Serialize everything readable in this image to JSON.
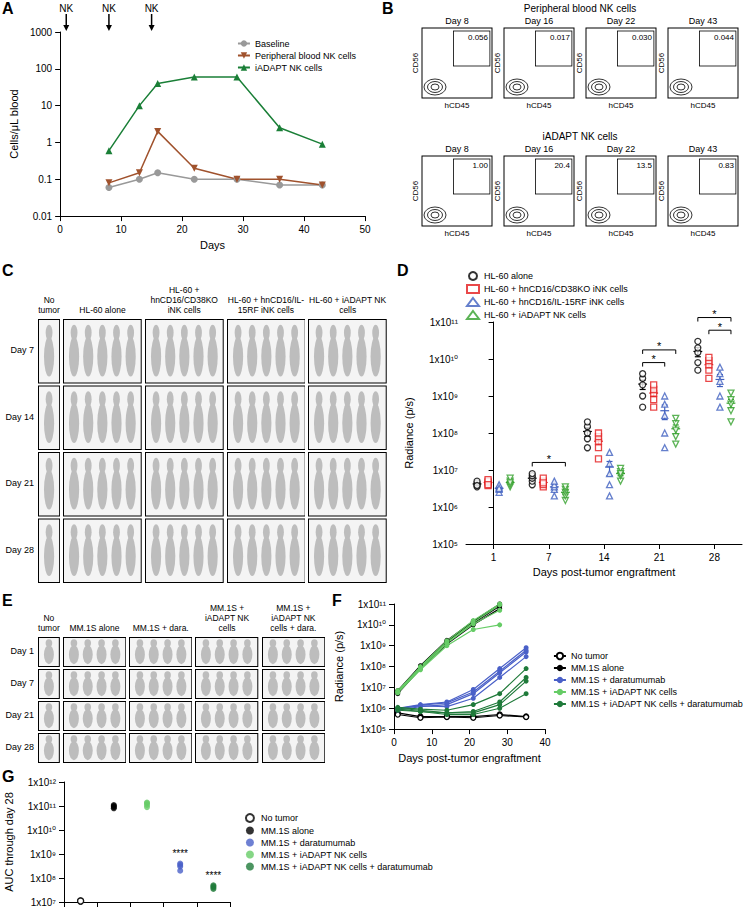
{
  "chart_data": [
    {
      "title": "A",
      "type": "line",
      "xlabel": "Days",
      "ylabel": "Cells/μL blood",
      "log": "y",
      "grid": false,
      "legend": "upper right",
      "xlim": [
        0,
        50
      ],
      "xticks": [
        0,
        10,
        20,
        30,
        40,
        50
      ],
      "ylim": [
        0.01,
        1000
      ],
      "yticks": [
        0.01,
        0.1,
        1,
        10,
        100,
        1000
      ],
      "annotations": [
        {
          "x": 1,
          "label": "NK"
        },
        {
          "x": 8,
          "label": "NK"
        },
        {
          "x": 15,
          "label": "NK"
        }
      ],
      "series": [
        {
          "name": "Baseline",
          "color": "#999999",
          "marker": "circle",
          "x": [
            8,
            13,
            16,
            22,
            29,
            36,
            43
          ],
          "values": [
            0.06,
            0.1,
            0.15,
            0.1,
            0.1,
            0.07,
            0.07
          ]
        },
        {
          "name": "Peripheral blood NK cells",
          "color": "#a0522d",
          "marker": "triangle_down",
          "x": [
            8,
            13,
            16,
            22,
            29,
            36,
            43
          ],
          "values": [
            0.08,
            0.15,
            2,
            0.2,
            0.1,
            0.1,
            0.07
          ]
        },
        {
          "name": "iADAPT NK cells",
          "color": "#1a7f37",
          "marker": "triangle",
          "x": [
            8,
            13,
            16,
            22,
            29,
            36,
            43
          ],
          "values": [
            0.6,
            10,
            40,
            60,
            60,
            2.5,
            0.9
          ]
        }
      ]
    },
    {
      "title": "D",
      "type": "scatter",
      "xlabel": "Days post-tumor engraftment",
      "ylabel": "Radiance (p/s)",
      "log": "y",
      "grid": false,
      "legend": "upper left",
      "categories": [
        "1",
        "7",
        "14",
        "21",
        "28"
      ],
      "ylim": [
        100000,
        100000000000
      ],
      "yticks": [
        {
          "value": 100000,
          "label": "1x10⁵"
        },
        {
          "value": 1000000,
          "label": "1x10⁶"
        },
        {
          "value": 10000000,
          "label": "1x10⁷"
        },
        {
          "value": 100000000,
          "label": "1x10⁸"
        },
        {
          "value": 1000000000,
          "label": "1x10⁹"
        },
        {
          "value": 10000000000,
          "label": "1x10¹⁰"
        },
        {
          "value": 100000000000,
          "label": "1x10¹¹"
        }
      ],
      "annotations": [
        {
          "category": "7",
          "from": "HL-60 alone",
          "to": "HL-60 + iADAPT NK cells",
          "label": "*"
        },
        {
          "category": "21",
          "from": "HL-60 alone",
          "to": "HL-60 + hnCD16/IL-15RF iNK cells",
          "label": "*"
        },
        {
          "category": "21",
          "from": "HL-60 alone",
          "to": "HL-60 + iADAPT NK cells",
          "label": "*"
        },
        {
          "category": "28",
          "from": "HL-60 + hnCD16/CD38KO iNK cells",
          "to": "HL-60 + iADAPT NK cells",
          "label": "*"
        },
        {
          "category": "28",
          "from": "HL-60 alone",
          "to": "HL-60 + iADAPT NK cells",
          "label": "*"
        }
      ],
      "series": [
        {
          "name": "HL-60 alone",
          "color": "#000000",
          "marker": "open_circle",
          "values": [
            [
              3500000.0,
              4000000.0,
              4500000.0,
              5000000.0,
              3800000.0
            ],
            [
              4000000.0,
              5000000.0,
              6000000.0,
              7000000.0,
              8000000.0
            ],
            [
              40000000.0,
              70000000.0,
              100000000.0,
              150000000.0,
              200000000.0
            ],
            [
              500000000.0,
              1000000000.0,
              2000000000.0,
              3000000000.0,
              4000000000.0
            ],
            [
              5000000000.0,
              8000000000.0,
              15000000000.0,
              20000000000.0,
              30000000000.0
            ]
          ],
          "mean": [
            4200000.0,
            6000000.0,
            110000000.0,
            2100000000.0,
            16000000000.0
          ],
          "sem": [
            250000.0,
            700000.0,
            30000000.0,
            600000000.0,
            4500000000.0
          ]
        },
        {
          "name": "HL-60 + hnCD16/CD38KO iNK cells",
          "color": "#e41a1c",
          "marker": "open_square",
          "values": [
            [
              3800000.0,
              4500000.0,
              5000000.0,
              5500000.0,
              4000000.0
            ],
            [
              3500000.0,
              4000000.0,
              5000000.0,
              6000000.0,
              4500000.0
            ],
            [
              20000000.0,
              40000000.0,
              60000000.0,
              80000000.0,
              100000000.0
            ],
            [
              500000000.0,
              800000000.0,
              1200000000.0,
              1500000000.0,
              2000000000.0
            ],
            [
              3000000000.0,
              5000000000.0,
              7000000000.0,
              9000000000.0,
              11000000000.0
            ]
          ],
          "mean": [
            4600000.0,
            4600000.0,
            60000000.0,
            1200000000.0,
            7000000000.0
          ],
          "sem": [
            300000.0,
            400000.0,
            14000000.0,
            260000000.0,
            1400000000.0
          ]
        },
        {
          "name": "HL-60 + hnCD16/IL-15RF iNK cells",
          "color": "#3f5fbf",
          "marker": "open_triangle",
          "values": [
            [
              2500000.0,
              3000000.0,
              3500000.0,
              4000000.0,
              3200000.0
            ],
            [
              2000000.0,
              3000000.0,
              3500000.0,
              4000000.0,
              5000000.0
            ],
            [
              2000000.0,
              4000000.0,
              8000000.0,
              15000000.0,
              30000000.0
            ],
            [
              40000000.0,
              100000000.0,
              300000000.0,
              600000000.0,
              1000000000.0
            ],
            [
              500000000.0,
              1000000000.0,
              2500000000.0,
              4000000000.0,
              6000000000.0
            ]
          ],
          "mean": [
            3200000.0,
            3500000.0,
            12000000.0,
            400000000.0,
            2800000000.0
          ],
          "sem": [
            250000.0,
            500000.0,
            5000000.0,
            170000000.0,
            1000000000.0
          ]
        },
        {
          "name": "HL-60 + iADAPT NK cells",
          "color": "#33a02c",
          "marker": "open_triangle_down",
          "values": [
            [
              3500000.0,
              4000000.0,
              5000000.0,
              6000000.0,
              4500000.0
            ],
            [
              1500000.0,
              2000000.0,
              2500000.0,
              3000000.0,
              3500000.0
            ],
            [
              5000000.0,
              7000000.0,
              9000000.0,
              11000000.0,
              8000000.0
            ],
            [
              50000000.0,
              80000000.0,
              120000000.0,
              180000000.0,
              250000000.0
            ],
            [
              200000000.0,
              400000000.0,
              600000000.0,
              800000000.0,
              1200000000.0
            ]
          ],
          "mean": [
            4600000.0,
            2500000.0,
            8000000.0,
            130000000.0,
            640000000.0
          ],
          "sem": [
            400000.0,
            350000.0,
            1000000.0,
            35000000.0,
            170000000.0
          ]
        }
      ]
    },
    {
      "title": "F",
      "type": "line",
      "xlabel": "Days post-tumor engraftment",
      "ylabel": "Radiance (p/s)",
      "log": "y",
      "grid": false,
      "legend": "right",
      "x": [
        1,
        7,
        14,
        21,
        28,
        35
      ],
      "xlim": [
        0,
        40
      ],
      "xticks": [
        0,
        10,
        20,
        30,
        40
      ],
      "ylim": [
        100000,
        100000000000
      ],
      "yticks": [
        {
          "value": 100000,
          "label": "1x10⁵"
        },
        {
          "value": 1000000,
          "label": "1x10⁶"
        },
        {
          "value": 10000000,
          "label": "1x10⁷"
        },
        {
          "value": 100000000,
          "label": "1x10⁸"
        },
        {
          "value": 1000000000,
          "label": "1x10⁹"
        },
        {
          "value": 10000000000,
          "label": "1x10¹⁰"
        },
        {
          "value": 100000000000,
          "label": "1x10¹¹"
        }
      ],
      "series": [
        {
          "name": "No tumor",
          "color": "#000000",
          "marker": "open_circle",
          "mice": [
            [
              600000.0,
              400000.0,
              400000.0,
              400000.0,
              500000.0,
              400000.0
            ],
            [
              500000.0,
              350000.0,
              380000.0,
              350000.0,
              450000.0,
              380000.0
            ]
          ]
        },
        {
          "name": "MM.1S alone",
          "color": "#000000",
          "marker": "circle",
          "mice": [
            [
              6000000.0,
              90000000.0,
              1500000000.0,
              12000000000.0,
              80000000000.0,
              null
            ],
            [
              7000000.0,
              110000000.0,
              1800000000.0,
              15000000000.0,
              100000000000.0,
              null
            ],
            [
              5000000.0,
              80000000.0,
              1200000000.0,
              10000000000.0,
              60000000000.0,
              null
            ],
            [
              6500000.0,
              100000000.0,
              1600000000.0,
              14000000000.0,
              90000000000.0,
              null
            ]
          ]
        },
        {
          "name": "MM.1S + daratumumab",
          "color": "#4a60c8",
          "marker": "circle",
          "mice": [
            [
              1000000.0,
              1500000.0,
              2000000.0,
              8000000.0,
              80000000.0,
              800000000.0
            ],
            [
              800000.0,
              1200000.0,
              1500000.0,
              5000000.0,
              50000000.0,
              500000000.0
            ],
            [
              1000000.0,
              1300000.0,
              1200000.0,
              3000000.0,
              30000000.0,
              300000000.0
            ],
            [
              900000.0,
              1400000.0,
              1800000.0,
              6000000.0,
              60000000.0,
              600000000.0
            ]
          ]
        },
        {
          "name": "MM.1S + iADAPT NK cells",
          "color": "#66cc66",
          "marker": "circle",
          "mice": [
            [
              6000000.0,
              90000000.0,
              1400000000.0,
              13000000000.0,
              90000000000.0,
              null
            ],
            [
              7000000.0,
              100000000.0,
              1700000000.0,
              16000000000.0,
              100000000000.0,
              null
            ],
            [
              5500000.0,
              70000000.0,
              1000000000.0,
              6000000000.0,
              10000000000.0,
              null
            ],
            [
              6000000.0,
              80000000.0,
              1300000000.0,
              11000000000.0,
              50000000000.0,
              null
            ]
          ]
        },
        {
          "name": "MM.1S + iADAPT NK cells + daratumumab",
          "color": "#1f7a3a",
          "marker": "circle",
          "mice": [
            [
              1000000.0,
              800000.0,
              600000.0,
              700000.0,
              2000000.0,
              30000000.0
            ],
            [
              900000.0,
              700000.0,
              500000.0,
              500000.0,
              1000000.0,
              5000000.0
            ],
            [
              1100000.0,
              900000.0,
              800000.0,
              1500000.0,
              5000000.0,
              80000000.0
            ],
            [
              800000.0,
              700000.0,
              600000.0,
              600000.0,
              1500000.0,
              20000000.0
            ]
          ]
        }
      ]
    },
    {
      "title": "G",
      "type": "scatter",
      "ylabel": "AUC through day 28",
      "log": "y",
      "grid": false,
      "legend": "right",
      "categories": [
        null,
        null,
        null,
        null,
        null
      ],
      "ylim": [
        10000000,
        1000000000000
      ],
      "yticks": [
        {
          "value": 10000000,
          "label": "1x10⁷"
        },
        {
          "value": 100000000,
          "label": "1x10⁸"
        },
        {
          "value": 1000000000,
          "label": "1x10⁹"
        },
        {
          "value": 10000000000,
          "label": "1x10¹⁰"
        },
        {
          "value": 100000000000,
          "label": "1x10¹¹"
        },
        {
          "value": 1000000000000,
          "label": "1x10¹²"
        }
      ],
      "annotations": [
        {
          "series": "MM.1S + daratumumab",
          "label": "****"
        },
        {
          "series": "MM.1S + iADAPT NK cells + daratumumab",
          "label": "****"
        }
      ],
      "series": [
        {
          "name": "No tumor",
          "color": "#000000",
          "marker": "open_circle",
          "values": [
            [
              11000000.0,
              11000000.0
            ],
            null,
            null,
            null,
            null
          ]
        },
        {
          "name": "MM.1S alone",
          "color": "#000000",
          "marker": "circle",
          "values": [
            null,
            [
              80000000000.0,
              100000000000.0,
              110000000000.0,
              90000000000.0
            ],
            null,
            null,
            null
          ]
        },
        {
          "name": "MM.1S + daratumumab",
          "color": "#4a60c8",
          "marker": "circle",
          "values": [
            null,
            null,
            null,
            [
              200000000.0,
              300000000.0,
              400000000.0,
              350000000.0
            ],
            null
          ]
        },
        {
          "name": "MM.1S + iADAPT NK cells",
          "color": "#66cc66",
          "marker": "circle",
          "values": [
            null,
            null,
            [
              110000000000.0,
              130000000000.0,
              140000000000.0,
              90000000000.0
            ],
            null,
            null
          ]
        },
        {
          "name": "MM.1S + iADAPT NK cells + daratumumab",
          "color": "#1f7a3a",
          "marker": "circle",
          "values": [
            null,
            null,
            null,
            null,
            [
              35000000.0,
              40000000.0,
              45000000.0,
              50000000.0
            ]
          ]
        }
      ]
    }
  ],
  "panels": [
    {
      "title": "B",
      "type": "flow",
      "xlabel": "hCD45",
      "ylabel": "CD56",
      "rows": [
        {
          "label": "Peripheral blood NK cells",
          "plots": [
            {
              "day": "Day 8",
              "gate": "0.056"
            },
            {
              "day": "Day 16",
              "gate": "0.017"
            },
            {
              "day": "Day 22",
              "gate": "0.030"
            },
            {
              "day": "Day 43",
              "gate": "0.044"
            }
          ]
        },
        {
          "label": "iADAPT NK cells",
          "plots": [
            {
              "day": "Day 8",
              "gate": "1.00"
            },
            {
              "day": "Day 16",
              "gate": "20.4"
            },
            {
              "day": "Day 22",
              "gate": "13.5"
            },
            {
              "day": "Day 43",
              "gate": "0.83"
            }
          ]
        }
      ]
    },
    {
      "title": "C",
      "type": "imaging",
      "columns": [
        "No tumor",
        "HL-60 alone",
        "HL-60 + hnCD16/CD38KO iNK cells",
        "HL-60 + hnCD16/IL-15RF iNK cells",
        "HL-60 + iADAPT NK cells"
      ],
      "mice": [
        1,
        5,
        5,
        5,
        5
      ],
      "rows": [
        "Day 7",
        "Day 14",
        "Day 21",
        "Day 28"
      ]
    },
    {
      "title": "E",
      "type": "imaging",
      "columns": [
        "No tumor",
        "MM.1S alone",
        "MM.1S + dara.",
        "MM.1S + iADAPT NK cells",
        "MM.1S + iADAPT NK cells + dara."
      ],
      "mice": [
        1,
        4,
        4,
        4,
        4
      ],
      "rows": [
        "Day 1",
        "Day 7",
        "Day 21",
        "Day 28"
      ]
    }
  ]
}
